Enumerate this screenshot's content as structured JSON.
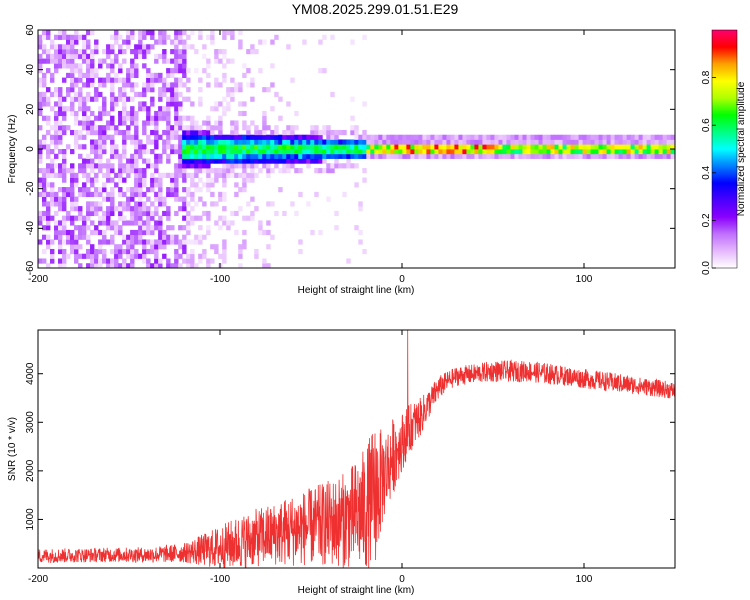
{
  "title": "YM08.2025.299.01.51.E29",
  "colors": {
    "snr_line": "#ee3030",
    "background": "#ffffff",
    "frame": "#000000",
    "colormap": [
      "#ffffff",
      "#e6b8ff",
      "#c070ff",
      "#8a00ff",
      "#4a00ff",
      "#0000ff",
      "#0080ff",
      "#00ffff",
      "#00ff80",
      "#00ff00",
      "#b0ff00",
      "#ffff00",
      "#ffa000",
      "#ff0000",
      "#ff0070"
    ]
  },
  "chart_data": [
    {
      "id": "spectrogram",
      "type": "heatmap",
      "xlabel": "Height of straight line (km)",
      "ylabel": "Frequency (Hz)",
      "xlim": [
        -200,
        150
      ],
      "ylim": [
        -60,
        60
      ],
      "xticks": [
        -200,
        -100,
        0,
        100
      ],
      "yticks": [
        -60,
        -40,
        -20,
        0,
        20,
        40,
        60
      ],
      "colorbar": {
        "label": "Normalized spectral amplitude",
        "range": [
          0,
          1
        ],
        "ticks": [
          0.0,
          0.2,
          0.4,
          0.6,
          0.8
        ]
      },
      "description_regions": [
        {
          "x_range": [
            -200,
            -120
          ],
          "freq_range": [
            -60,
            60
          ],
          "amplitude": 0.15
        },
        {
          "x_range": [
            -120,
            -65
          ],
          "freq_range": [
            -60,
            60
          ],
          "amplitude": 0.03
        },
        {
          "x_range": [
            -120,
            -20
          ],
          "freq_range": [
            -8,
            8
          ],
          "amplitude": 0.45
        },
        {
          "x_range": [
            -20,
            150
          ],
          "freq_range": [
            -2,
            4
          ],
          "amplitude": 0.7
        }
      ]
    },
    {
      "id": "snr",
      "type": "line",
      "xlabel": "Height of straight line (km)",
      "ylabel": "SNR (10 * v/v)",
      "xlim": [
        -200,
        150
      ],
      "ylim": [
        0,
        4900
      ],
      "xticks": [
        -200,
        -100,
        0,
        100
      ],
      "yticks": [
        1000,
        2000,
        3000,
        4000
      ],
      "series": [
        {
          "name": "SNR",
          "x": [
            -200,
            -180,
            -160,
            -140,
            -120,
            -100,
            -90,
            -80,
            -70,
            -60,
            -50,
            -40,
            -30,
            -20,
            -15,
            -10,
            -5,
            0,
            5,
            10,
            15,
            20,
            25,
            30,
            40,
            50,
            60,
            70,
            80,
            90,
            100,
            110,
            120,
            130,
            140,
            150
          ],
          "mean": [
            250,
            260,
            270,
            270,
            310,
            420,
            520,
            620,
            700,
            780,
            850,
            920,
            1000,
            1200,
            1500,
            1900,
            2300,
            2600,
            2900,
            3100,
            3400,
            3700,
            3850,
            3950,
            4000,
            4050,
            4050,
            4050,
            4000,
            3950,
            3900,
            3850,
            3800,
            3750,
            3700,
            3650
          ],
          "noise": [
            150,
            150,
            150,
            160,
            200,
            450,
            550,
            600,
            650,
            750,
            800,
            900,
            1000,
            1300,
            1500,
            900,
            800,
            600,
            500,
            400,
            300,
            250,
            200,
            200,
            200,
            220,
            220,
            220,
            220,
            200,
            200,
            200,
            200,
            180,
            180,
            180
          ]
        }
      ]
    }
  ]
}
